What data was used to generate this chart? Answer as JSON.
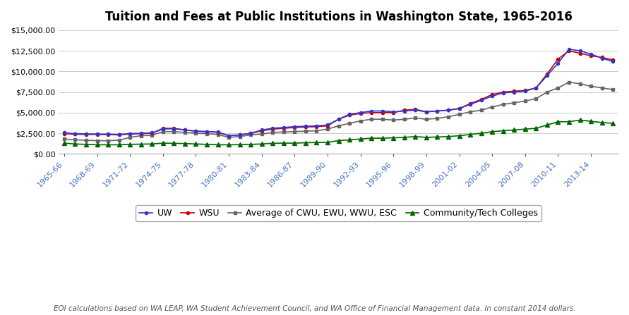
{
  "title": "Tuition and Fees at Public Institutions in Washington State, 1965-2016",
  "footnote": "EOI calculations based on WA LEAP, WA Student Achievement Council, and WA Office of Financial Management data. In constant 2014 dollars.",
  "x_labels": [
    "1965-66",
    "1968-69",
    "1971-72",
    "1974-75",
    "1977-78",
    "1980-81",
    "1983-84",
    "1986-87",
    "1989-90",
    "1992-93",
    "1995-96",
    "1998-99",
    "2001-02",
    "2004-05",
    "2007-08",
    "2010-11",
    "2013-14"
  ],
  "ylim": [
    0,
    15000
  ],
  "yticks": [
    0,
    2500,
    5000,
    7500,
    10000,
    12500,
    15000
  ],
  "legend_labels": [
    "UW",
    "WSU",
    "Average of CWU, EWU, WWU, ESC",
    "Community/Tech Colleges"
  ],
  "legend_colors": [
    "#3333cc",
    "#cc0000",
    "#666666",
    "#006600"
  ],
  "background_color": "#ffffff",
  "grid_color": "#cccccc",
  "title_fontsize": 12,
  "tick_label_fontsize": 8,
  "legend_fontsize": 9,
  "footnote_fontsize": 7.5,
  "uw_data": [
    2550,
    2450,
    2420,
    2400,
    2380,
    2350,
    2450,
    2500,
    2550,
    3000,
    3050,
    2900,
    2750,
    2700,
    2650,
    2200,
    2300,
    2500,
    2900,
    3100,
    3200,
    3300,
    3350,
    3400,
    3500,
    4200,
    4800,
    5000,
    5200,
    5200,
    5100,
    5200,
    5300,
    5100,
    5200,
    5300,
    5500,
    6000,
    6500,
    7000,
    7400,
    7500,
    7600,
    8000,
    9500,
    11000,
    12700,
    12500,
    12100,
    11600,
    11200
  ],
  "wsu_data": [
    2450,
    2380,
    2350,
    2350,
    2330,
    2300,
    2400,
    2450,
    2500,
    3100,
    3100,
    2900,
    2750,
    2700,
    2600,
    2200,
    2300,
    2500,
    2800,
    3000,
    3100,
    3200,
    3250,
    3300,
    3400,
    4200,
    4700,
    4900,
    5000,
    5000,
    5000,
    5300,
    5400,
    5100,
    5200,
    5300,
    5500,
    6100,
    6600,
    7200,
    7500,
    7600,
    7700,
    8000,
    9700,
    11500,
    12500,
    12200,
    11900,
    11700,
    11400
  ],
  "cwu_data": [
    1800,
    1700,
    1650,
    1600,
    1600,
    1650,
    2000,
    2200,
    2250,
    2700,
    2700,
    2600,
    2500,
    2450,
    2350,
    2000,
    2100,
    2300,
    2400,
    2600,
    2650,
    2700,
    2750,
    2800,
    3000,
    3400,
    3700,
    4000,
    4200,
    4200,
    4100,
    4200,
    4350,
    4200,
    4300,
    4500,
    4800,
    5100,
    5300,
    5700,
    6000,
    6200,
    6400,
    6700,
    7500,
    8000,
    8700,
    8500,
    8200,
    8000,
    7800
  ],
  "cc_data": [
    1300,
    1200,
    1150,
    1100,
    1100,
    1100,
    1150,
    1180,
    1200,
    1300,
    1280,
    1250,
    1200,
    1150,
    1100,
    1100,
    1120,
    1150,
    1200,
    1280,
    1300,
    1300,
    1350,
    1380,
    1400,
    1600,
    1700,
    1800,
    1900,
    1900,
    1950,
    2000,
    2100,
    2000,
    2050,
    2100,
    2200,
    2350,
    2500,
    2700,
    2800,
    2900,
    3000,
    3100,
    3500,
    3900,
    3900,
    4100,
    3950,
    3800,
    3700
  ]
}
